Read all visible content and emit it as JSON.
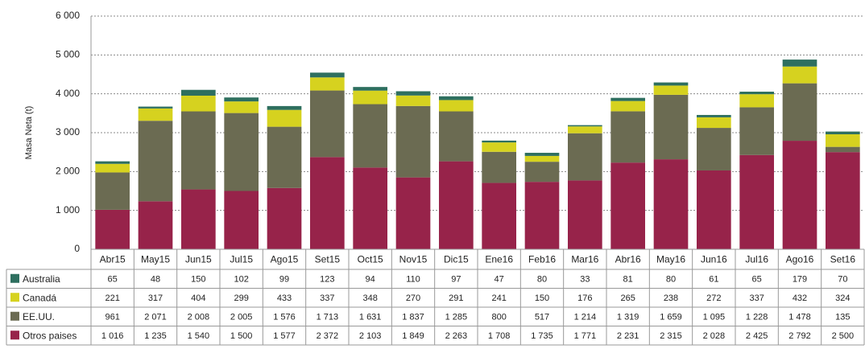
{
  "chart_data": {
    "type": "stacked_bar",
    "ylabel": "Masa Neta (t)",
    "categories": [
      "Abr15",
      "May15",
      "Jun15",
      "Jul15",
      "Ago15",
      "Set15",
      "Oct15",
      "Nov15",
      "Dic15",
      "Ene16",
      "Feb16",
      "Mar16",
      "Abr16",
      "May16",
      "Jun16",
      "Jul16",
      "Ago16",
      "Set16"
    ],
    "series": [
      {
        "name": "Australia",
        "color": "#2e6f5f",
        "values": [
          65,
          48,
          150,
          102,
          99,
          123,
          94,
          110,
          97,
          47,
          80,
          33,
          81,
          80,
          61,
          65,
          179,
          70
        ]
      },
      {
        "name": "Canadá",
        "color": "#d6d21f",
        "values": [
          221,
          317,
          404,
          299,
          433,
          337,
          348,
          270,
          291,
          241,
          150,
          176,
          265,
          238,
          272,
          337,
          432,
          324
        ]
      },
      {
        "name": "EE.UU.",
        "color": "#6b6b52",
        "values": [
          961,
          2071,
          2008,
          2005,
          1576,
          1713,
          1631,
          1837,
          1285,
          800,
          517,
          1214,
          1319,
          1659,
          1095,
          1228,
          1478,
          135
        ],
        "value_labels": [
          "961",
          "2 071",
          "2 008",
          "2 005",
          "1 576",
          "1 713",
          "1 631",
          "1 837",
          "1 285",
          "800",
          "517",
          "1 214",
          "1 319",
          "1 659",
          "1 095",
          "1 228",
          "1 478",
          "135"
        ]
      },
      {
        "name": "Otros paises",
        "color": "#97234a",
        "values": [
          1016,
          1235,
          1540,
          1500,
          1577,
          2372,
          2103,
          1849,
          2263,
          1708,
          1735,
          1771,
          2231,
          2315,
          2028,
          2425,
          2792,
          2500
        ],
        "value_labels": [
          "1 016",
          "1 235",
          "1 540",
          "1 500",
          "1 577",
          "2 372",
          "2 103",
          "1 849",
          "2 263",
          "1 708",
          "1 735",
          "1 771",
          "2 231",
          "2 315",
          "2 028",
          "2 425",
          "2 792",
          "2 500"
        ]
      }
    ],
    "ylim": [
      0,
      6000
    ],
    "yticks": [
      0,
      {
        "value": 1000,
        "label": "1 000"
      },
      {
        "value": 2000,
        "label": "2 000"
      },
      {
        "value": 3000,
        "label": "3 000"
      },
      {
        "value": 4000,
        "label": "4 000"
      },
      {
        "value": 5000,
        "label": "5 000"
      },
      {
        "value": 6000,
        "label": "6 000"
      }
    ],
    "grid": true
  }
}
